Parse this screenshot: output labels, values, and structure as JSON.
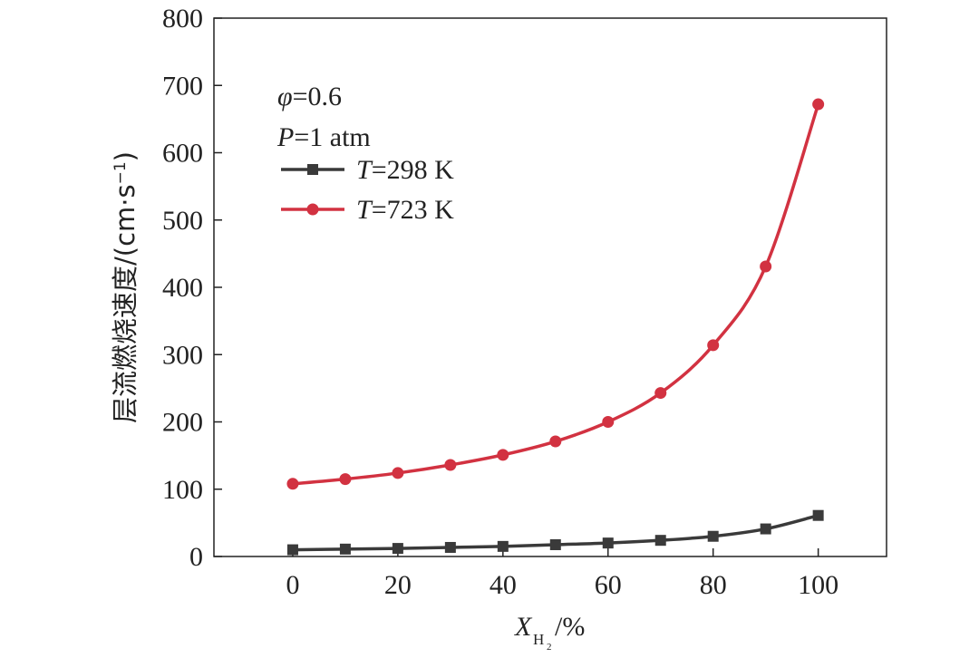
{
  "chart_data": {
    "type": "line",
    "xlabel": {
      "var": "X",
      "sub": "H",
      "subsub": "2",
      "unit": "/%"
    },
    "ylabel": {
      "text": "层流燃烧速度/(cm·s",
      "sup": "−1",
      "close": ")"
    },
    "xlim": [
      -15,
      113
    ],
    "ylim": [
      0,
      800
    ],
    "x_ticks": [
      0,
      20,
      40,
      60,
      80,
      100
    ],
    "x_tick_labels": [
      "0",
      "20",
      "40",
      "60",
      "80",
      "100"
    ],
    "y_ticks": [
      0,
      100,
      200,
      300,
      400,
      500,
      600,
      700,
      800
    ],
    "y_tick_labels": [
      "0",
      "100",
      "200",
      "300",
      "400",
      "500",
      "600",
      "700",
      "800"
    ],
    "grid": false,
    "legend_position": "top-left",
    "annotations": [
      {
        "var": "φ",
        "text": "=0.6"
      },
      {
        "var": "P",
        "text": "=1 atm"
      }
    ],
    "x": [
      0,
      10,
      20,
      30,
      40,
      50,
      60,
      70,
      80,
      90,
      100
    ],
    "series": [
      {
        "name": "T=298 K",
        "legend_var": "T",
        "legend_text": "=298 K",
        "marker": "square",
        "color": "#3a3a3a",
        "values": [
          10,
          11,
          12,
          13.5,
          15,
          17.5,
          20,
          24,
          30,
          41,
          61
        ]
      },
      {
        "name": "T=723 K",
        "legend_var": "T",
        "legend_text": "=723 K",
        "marker": "circle",
        "color": "#d23241",
        "values": [
          108,
          115,
          124,
          136,
          151,
          171,
          200,
          243,
          314,
          431,
          672
        ]
      }
    ]
  }
}
